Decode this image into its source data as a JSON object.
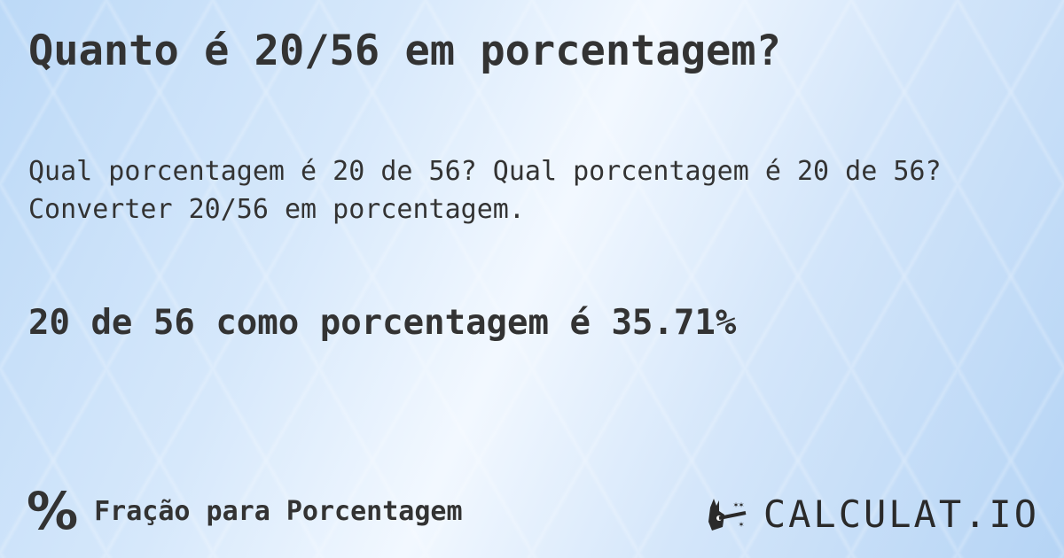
{
  "title": "Quanto é 20/56 em porcentagem?",
  "description": "Qual porcentagem é 20 de 56? Qual porcentagem é 20 de 56? Converter 20/56 em porcentagem.",
  "result": "20 de 56 como porcentagem é 35.71%",
  "footer": {
    "icon": "percent-icon",
    "label": "Fração para Porcentagem"
  },
  "logo": {
    "text": "CALCULAT.IO",
    "icon": "magic-hand-wand-icon"
  },
  "colors": {
    "text": "#333333",
    "background": "#d6e8fb"
  }
}
